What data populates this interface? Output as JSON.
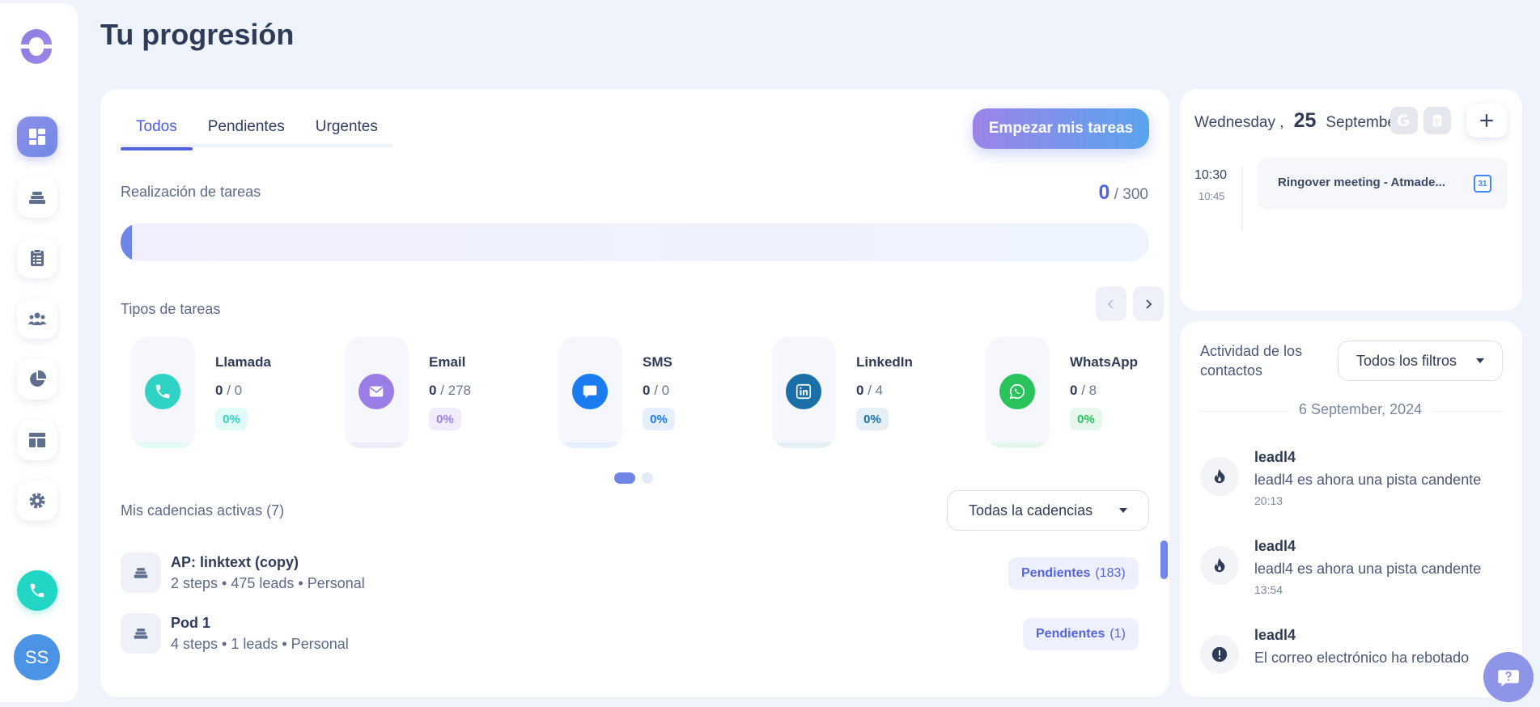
{
  "page": {
    "title": "Tu progresión"
  },
  "sidebar": {
    "items": [
      {
        "name": "dashboard",
        "active": true
      },
      {
        "name": "cadences"
      },
      {
        "name": "tasks"
      },
      {
        "name": "contacts"
      },
      {
        "name": "analytics"
      },
      {
        "name": "templates"
      },
      {
        "name": "settings"
      }
    ],
    "avatar_initials": "SS"
  },
  "tabs": [
    {
      "label": "Todos",
      "active": true
    },
    {
      "label": "Pendientes"
    },
    {
      "label": "Urgentes"
    }
  ],
  "start_button": "Empezar mis tareas",
  "completion": {
    "label": "Realización de tareas",
    "done": "0",
    "total": "/ 300",
    "fraction": 0
  },
  "task_types": {
    "label": "Tipos de tareas",
    "items": [
      {
        "name": "Llamada",
        "done": "0",
        "total": "/ 0",
        "pct": "0%",
        "color": "#2fd2c4",
        "bg": "#e3fbf8",
        "icon": "phone-icon"
      },
      {
        "name": "Email",
        "done": "0",
        "total": "/ 278",
        "pct": "0%",
        "color": "#9a7ee6",
        "bg": "#f1ecfc",
        "icon": "mail-icon"
      },
      {
        "name": "SMS",
        "done": "0",
        "total": "/ 0",
        "pct": "0%",
        "color": "#1a7cf0",
        "bg": "#e6f0fd",
        "icon": "chat-icon"
      },
      {
        "name": "LinkedIn",
        "done": "0",
        "total": "/ 4",
        "pct": "0%",
        "color": "#1a6fa8",
        "bg": "#e5eff6",
        "icon": "linkedin-icon"
      },
      {
        "name": "WhatsApp",
        "done": "0",
        "total": "/ 8",
        "pct": "0%",
        "color": "#28c45b",
        "bg": "#e6f8ec",
        "icon": "whatsapp-icon"
      }
    ]
  },
  "cadences": {
    "label": "Mis cadencias activas (7)",
    "filter": "Todas la cadencias",
    "items": [
      {
        "title": "AP: linktext (copy)",
        "meta": "2 steps • 475 leads • Personal",
        "pending_label": "Pendientes",
        "pending_count": "(183)"
      },
      {
        "title": "Pod 1",
        "meta": "4 steps • 1 leads • Personal",
        "pending_label": "Pendientes",
        "pending_count": "(1)"
      }
    ]
  },
  "calendar": {
    "weekday": "Wednesday ,",
    "day": "25",
    "month": "September",
    "event": {
      "start": "10:30",
      "end": "10:45",
      "title": "Ringover meeting - Atmade..."
    }
  },
  "activity": {
    "title": "Actividad de los contactos",
    "filter": "Todos los filtros",
    "date": "6 September, 2024",
    "items": [
      {
        "name": "leadl4",
        "desc": "leadl4 es ahora una pista candente",
        "time": "20:13",
        "icon": "fire-icon"
      },
      {
        "name": "leadl4",
        "desc": "leadl4 es ahora una pista candente",
        "time": "13:54",
        "icon": "fire-icon"
      },
      {
        "name": "leadl4",
        "desc": "El correo electrónico ha rebotado",
        "time": "",
        "icon": "alert-icon"
      }
    ]
  }
}
